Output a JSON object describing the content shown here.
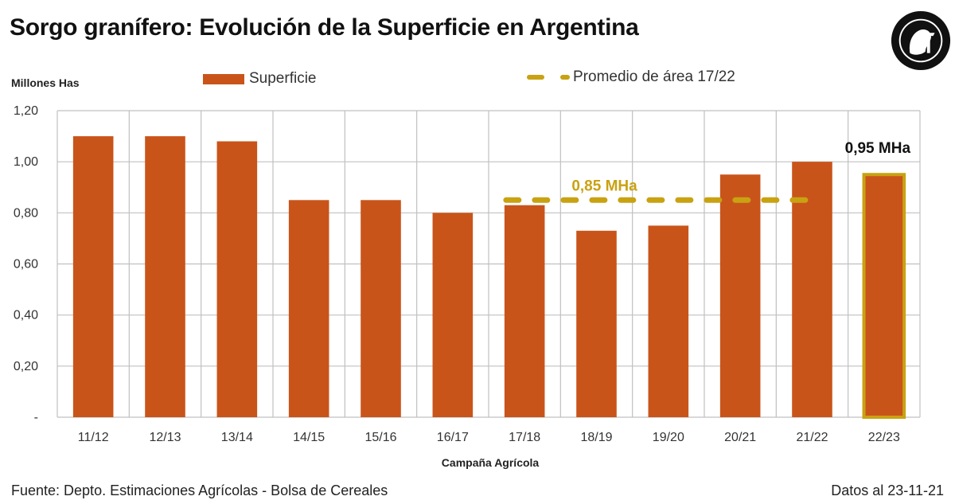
{
  "header": {
    "title": "Sorgo granífero: Evolución de la Superficie en Argentina",
    "logo": "bolsa-de-cereales-seal"
  },
  "footer": {
    "source": "Fuente: Depto. Estimaciones Agrícolas - Bolsa de Cereales",
    "date": "Datos al 23-11-21"
  },
  "colors": {
    "bar": "#c9541a",
    "average_line": "#c9a212",
    "highlight_border": "#c9a212",
    "grid": "#c0c0c0"
  },
  "chart_data": {
    "type": "bar",
    "title": "Sorgo granífero: Evolución de la Superficie en Argentina",
    "xlabel": "Campaña Agrícola",
    "ylabel": "Millones Has",
    "ylim": [
      0,
      1.2
    ],
    "yticks": [
      0,
      0.2,
      0.4,
      0.6,
      0.8,
      1.0,
      1.2
    ],
    "ytick_labels": [
      "-",
      "0,20",
      "0,40",
      "0,60",
      "0,80",
      "1,00",
      "1,20"
    ],
    "grid": true,
    "legend": {
      "placement": "top",
      "entries": [
        "Superficie",
        "Promedio de área 17/22"
      ]
    },
    "categories": [
      "11/12",
      "12/13",
      "13/14",
      "14/15",
      "15/16",
      "16/17",
      "17/18",
      "18/19",
      "19/20",
      "20/21",
      "21/22",
      "22/23"
    ],
    "series": [
      {
        "name": "Superficie",
        "type": "bar",
        "values": [
          1.1,
          1.1,
          1.08,
          0.85,
          0.85,
          0.8,
          0.83,
          0.73,
          0.75,
          0.95,
          1.0,
          0.95
        ],
        "highlighted_category": "22/23"
      },
      {
        "name": "Promedio de área 17/22",
        "type": "line",
        "style": "dashed",
        "value": 0.85,
        "x_range": [
          "17/18",
          "21/22"
        ]
      }
    ],
    "annotations": [
      {
        "text": "0,85 MHa",
        "target": "Promedio de área 17/22",
        "color": "#c9a212"
      },
      {
        "text": "0,95 MHa",
        "target": "22/23",
        "color": "#111111"
      }
    ]
  }
}
